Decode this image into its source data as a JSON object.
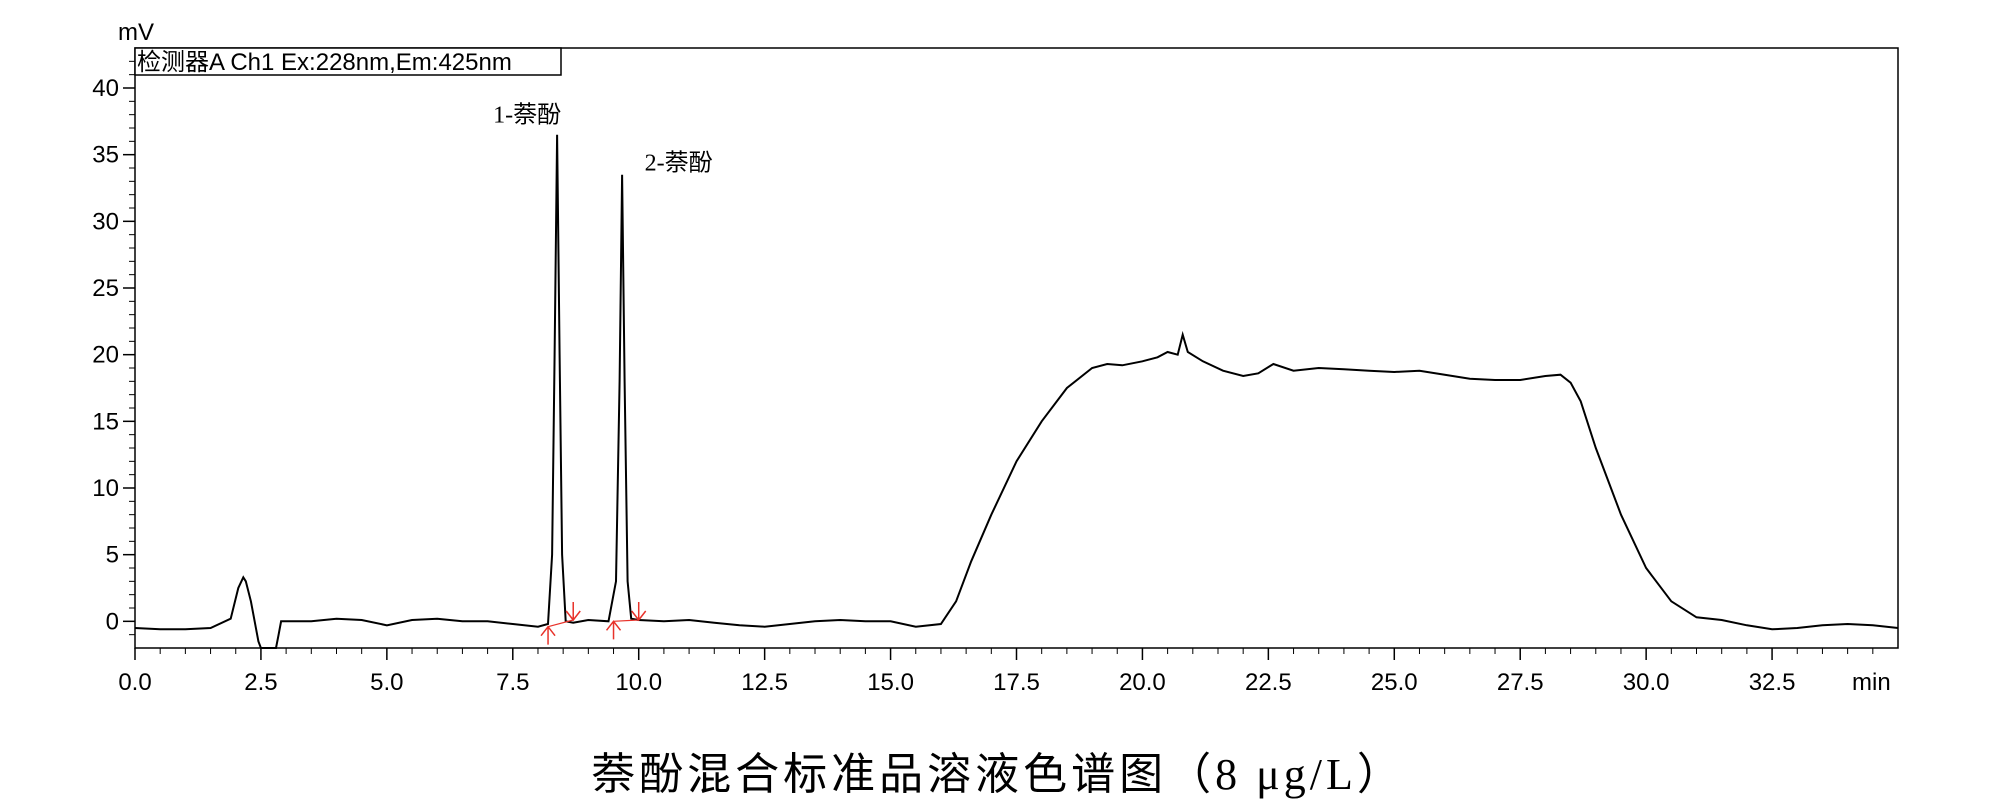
{
  "caption": "萘酚混合标准品溶液色谱图（8 μg/L）",
  "chart_data": {
    "type": "line",
    "title": "",
    "detector_label": "检测器A Ch1 Ex:228nm,Em:425nm",
    "ylabel": "mV",
    "xlabel": "min",
    "xlim": [
      0,
      35
    ],
    "ylim": [
      -2,
      43
    ],
    "x_ticks": [
      0.0,
      2.5,
      5.0,
      7.5,
      10.0,
      12.5,
      15.0,
      17.5,
      20.0,
      22.5,
      25.0,
      27.5,
      30.0,
      32.5
    ],
    "x_tick_labels": [
      "0.0",
      "2.5",
      "5.0",
      "7.5",
      "10.0",
      "12.5",
      "15.0",
      "17.5",
      "20.0",
      "22.5",
      "25.0",
      "27.5",
      "30.0",
      "32.5"
    ],
    "y_ticks": [
      0,
      5,
      10,
      15,
      20,
      25,
      30,
      35,
      40
    ],
    "y_tick_labels": [
      "0",
      "5",
      "10",
      "15",
      "20",
      "25",
      "30",
      "35",
      "40"
    ],
    "grid": false,
    "series": [
      {
        "x": [
          0.0,
          0.5,
          1.0,
          1.5,
          1.9,
          2.05,
          2.15,
          2.2,
          2.3,
          2.4,
          2.45,
          2.5,
          2.55,
          2.8,
          2.85,
          2.9,
          3.5,
          4.0,
          4.5,
          5.0,
          5.5,
          6.0,
          6.5,
          7.0,
          7.5,
          8.0,
          8.2,
          8.28,
          8.33,
          8.38,
          8.43,
          8.48,
          8.55,
          8.7,
          9.0,
          9.4,
          9.55,
          9.62,
          9.67,
          9.72,
          9.78,
          9.85,
          10.0,
          10.5,
          11.0,
          11.5,
          12.0,
          12.5,
          13.0,
          13.5,
          14.0,
          14.5,
          15.0,
          15.5,
          16.0,
          16.3,
          16.6,
          17.0,
          17.5,
          18.0,
          18.5,
          19.0,
          19.3,
          19.6,
          20.0,
          20.3,
          20.5,
          20.7,
          20.8,
          20.9,
          21.2,
          21.6,
          22.0,
          22.3,
          22.6,
          23.0,
          23.5,
          24.0,
          24.5,
          25.0,
          25.5,
          26.0,
          26.5,
          27.0,
          27.5,
          28.0,
          28.3,
          28.5,
          28.7,
          29.0,
          29.5,
          30.0,
          30.5,
          31.0,
          31.5,
          32.0,
          32.5,
          33.0,
          33.5,
          34.0,
          34.5,
          35.0
        ],
        "y": [
          -0.5,
          -0.6,
          -0.6,
          -0.5,
          0.2,
          2.5,
          3.3,
          3.0,
          1.5,
          -0.5,
          -1.5,
          -2.5,
          -2.5,
          -2.5,
          -1.0,
          0.0,
          0.0,
          0.2,
          0.1,
          -0.3,
          0.1,
          0.2,
          0.0,
          0.0,
          -0.2,
          -0.4,
          -0.2,
          5.0,
          20.0,
          36.5,
          20.0,
          5.0,
          0.0,
          -0.1,
          0.1,
          0.0,
          3.0,
          18.0,
          33.5,
          18.0,
          3.0,
          0.2,
          0.1,
          0.0,
          0.1,
          -0.1,
          -0.3,
          -0.4,
          -0.2,
          0.0,
          0.1,
          0.0,
          0.0,
          -0.4,
          -0.2,
          1.5,
          4.5,
          8.0,
          12.0,
          15.0,
          17.5,
          19.0,
          19.3,
          19.2,
          19.5,
          19.8,
          20.2,
          20.0,
          21.5,
          20.2,
          19.5,
          18.8,
          18.4,
          18.6,
          19.3,
          18.8,
          19.0,
          18.9,
          18.8,
          18.7,
          18.8,
          18.5,
          18.2,
          18.1,
          18.1,
          18.4,
          18.5,
          17.9,
          16.5,
          13.0,
          8.0,
          4.0,
          1.5,
          0.3,
          0.1,
          -0.3,
          -0.6,
          -0.5,
          -0.3,
          -0.2,
          -0.3,
          -0.5
        ]
      }
    ],
    "peak_labels": [
      {
        "text": "1-萘酚",
        "x": 8.38,
        "y": 36.5
      },
      {
        "text": "2-萘酚",
        "x": 9.72,
        "y": 33.5
      }
    ],
    "integration_markers": [
      {
        "x": 8.2,
        "y": -0.4,
        "dir": "up"
      },
      {
        "x": 8.7,
        "y": 0.1,
        "dir": "down"
      },
      {
        "x": 9.5,
        "y": 0.0,
        "dir": "up"
      },
      {
        "x": 10.0,
        "y": 0.1,
        "dir": "down"
      }
    ],
    "colors": {
      "line": "#000000",
      "marker": "#e8322a"
    }
  }
}
